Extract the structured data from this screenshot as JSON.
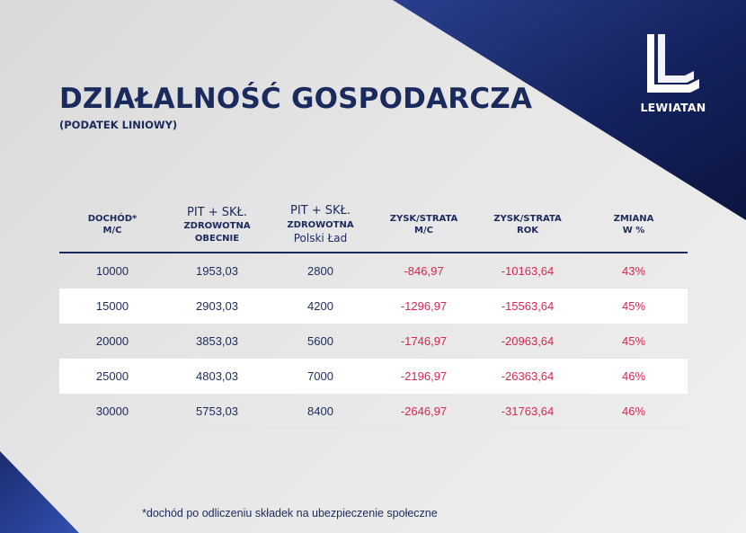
{
  "brand": {
    "logo_text": "LEWIATAN",
    "primary_color": "#1b2a5c",
    "accent_color": "#d6274f",
    "logo_icon": "lewiatan-l-icon"
  },
  "header": {
    "title": "DZIAŁALNOŚĆ GOSPODARCZA",
    "subtitle": "(PODATEK LINIOWY)"
  },
  "table": {
    "columns": [
      {
        "l1": "DOCHÓD*",
        "l2": "M/C"
      },
      {
        "l1": "PIT + SKŁ.",
        "l2": "ZDROWOTNA",
        "l3": "OBECNIE"
      },
      {
        "l1": "PIT + SKŁ.",
        "l2": "ZDROWOTNA",
        "l3": "Polski Ład"
      },
      {
        "l1": "ZYSK/STRATA",
        "l2": "M/C"
      },
      {
        "l1": "ZYSK/STRATA",
        "l2": "ROK"
      },
      {
        "l1": "ZMIANA",
        "l2": "W %"
      }
    ],
    "rows": [
      [
        "10000",
        "1953,03",
        "2800",
        "-846,97",
        "-10163,64",
        "43%"
      ],
      [
        "15000",
        "2903,03",
        "4200",
        "-1296,97",
        "-15563,64",
        "45%"
      ],
      [
        "20000",
        "3853,03",
        "5600",
        "-1746,97",
        "-20963,64",
        "45%"
      ],
      [
        "25000",
        "4803,03",
        "7000",
        "-2196,97",
        "-26363,64",
        "46%"
      ],
      [
        "30000",
        "5753,03",
        "8400",
        "-2646,97",
        "-31763,64",
        "46%"
      ]
    ]
  },
  "footnote": "*dochód po odliczeniu składek na ubezpieczenie społeczne"
}
